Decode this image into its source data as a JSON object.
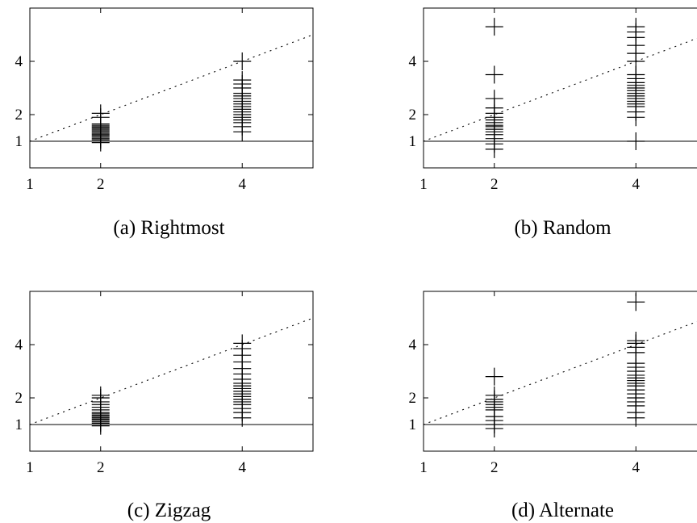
{
  "chart_data": [
    {
      "type": "scatter",
      "caption": "(a) Rightmost",
      "x_ticks": [
        1,
        2,
        4
      ],
      "y_ticks": [
        1,
        2,
        4
      ],
      "reference_lines": [
        "y = 1",
        "y = x"
      ],
      "series": [
        {
          "marker": "plus",
          "points": [
            [
              2,
              0.95
            ],
            [
              2,
              1.05
            ],
            [
              2,
              1.1
            ],
            [
              2,
              1.15
            ],
            [
              2,
              1.2
            ],
            [
              2,
              1.25
            ],
            [
              2,
              1.3
            ],
            [
              2,
              1.35
            ],
            [
              2,
              1.4
            ],
            [
              2,
              1.45
            ],
            [
              2,
              1.5
            ],
            [
              2,
              1.55
            ],
            [
              2,
              1.6
            ],
            [
              2,
              1.65
            ],
            [
              2,
              1.9
            ],
            [
              2,
              2.05
            ],
            [
              4,
              1.35
            ],
            [
              4,
              1.55
            ],
            [
              4,
              1.7
            ],
            [
              4,
              1.8
            ],
            [
              4,
              1.9
            ],
            [
              4,
              2.0
            ],
            [
              4,
              2.1
            ],
            [
              4,
              2.2
            ],
            [
              4,
              2.3
            ],
            [
              4,
              2.4
            ],
            [
              4,
              2.5
            ],
            [
              4,
              2.6
            ],
            [
              4,
              2.7
            ],
            [
              4,
              2.8
            ],
            [
              4,
              3.0
            ],
            [
              4,
              3.15
            ],
            [
              4,
              3.3
            ],
            [
              4,
              4.0
            ]
          ]
        }
      ]
    },
    {
      "type": "scatter",
      "caption": "(b) Random",
      "x_ticks": [
        1,
        2,
        4
      ],
      "y_ticks": [
        1,
        2,
        4
      ],
      "reference_lines": [
        "y = 1",
        "y = x"
      ],
      "series": [
        {
          "marker": "plus",
          "points": [
            [
              2,
              0.7
            ],
            [
              2,
              0.9
            ],
            [
              2,
              1.1
            ],
            [
              2,
              1.25
            ],
            [
              2,
              1.35
            ],
            [
              2,
              1.45
            ],
            [
              2,
              1.55
            ],
            [
              2,
              1.6
            ],
            [
              2,
              1.7
            ],
            [
              2,
              1.8
            ],
            [
              2,
              1.9
            ],
            [
              2,
              2.05
            ],
            [
              2,
              2.25
            ],
            [
              2,
              2.6
            ],
            [
              2,
              3.5
            ],
            [
              2,
              5.3
            ],
            [
              4,
              1.0
            ],
            [
              4,
              1.9
            ],
            [
              4,
              2.1
            ],
            [
              4,
              2.3
            ],
            [
              4,
              2.4
            ],
            [
              4,
              2.5
            ],
            [
              4,
              2.6
            ],
            [
              4,
              2.7
            ],
            [
              4,
              2.8
            ],
            [
              4,
              2.9
            ],
            [
              4,
              3.0
            ],
            [
              4,
              3.1
            ],
            [
              4,
              3.2
            ],
            [
              4,
              3.35
            ],
            [
              4,
              3.5
            ],
            [
              4,
              4.0
            ],
            [
              4,
              4.3
            ],
            [
              4,
              4.6
            ],
            [
              4,
              4.9
            ],
            [
              4,
              5.1
            ],
            [
              4,
              5.3
            ]
          ]
        }
      ]
    },
    {
      "type": "scatter",
      "caption": "(c) Zigzag",
      "x_ticks": [
        1,
        2,
        4
      ],
      "y_ticks": [
        1,
        2,
        4
      ],
      "reference_lines": [
        "y = 1",
        "y = x"
      ],
      "series": [
        {
          "marker": "plus",
          "points": [
            [
              2,
              0.95
            ],
            [
              2,
              1.05
            ],
            [
              2,
              1.1
            ],
            [
              2,
              1.15
            ],
            [
              2,
              1.2
            ],
            [
              2,
              1.25
            ],
            [
              2,
              1.3
            ],
            [
              2,
              1.35
            ],
            [
              2,
              1.4
            ],
            [
              2,
              1.45
            ],
            [
              2,
              1.55
            ],
            [
              2,
              1.65
            ],
            [
              2,
              1.75
            ],
            [
              2,
              1.85
            ],
            [
              2,
              2.0
            ],
            [
              2,
              2.1
            ],
            [
              4,
              1.25
            ],
            [
              4,
              1.45
            ],
            [
              4,
              1.6
            ],
            [
              4,
              1.75
            ],
            [
              4,
              1.85
            ],
            [
              4,
              1.95
            ],
            [
              4,
              2.05
            ],
            [
              4,
              2.15
            ],
            [
              4,
              2.25
            ],
            [
              4,
              2.35
            ],
            [
              4,
              2.45
            ],
            [
              4,
              2.55
            ],
            [
              4,
              2.7
            ],
            [
              4,
              2.9
            ],
            [
              4,
              3.1
            ],
            [
              4,
              3.35
            ],
            [
              4,
              3.6
            ],
            [
              4,
              3.85
            ],
            [
              4,
              4.05
            ]
          ]
        }
      ]
    },
    {
      "type": "scatter",
      "caption": "(d) Alternate",
      "x_ticks": [
        1,
        2,
        4
      ],
      "y_ticks": [
        1,
        2,
        4
      ],
      "reference_lines": [
        "y = 1",
        "y = x"
      ],
      "series": [
        {
          "marker": "plus",
          "points": [
            [
              2,
              0.85
            ],
            [
              2,
              1.0
            ],
            [
              2,
              1.15
            ],
            [
              2,
              1.3
            ],
            [
              2,
              1.55
            ],
            [
              2,
              1.65
            ],
            [
              2,
              1.75
            ],
            [
              2,
              1.85
            ],
            [
              2,
              1.95
            ],
            [
              2,
              2.1
            ],
            [
              2,
              2.8
            ],
            [
              4,
              1.25
            ],
            [
              4,
              1.45
            ],
            [
              4,
              1.7
            ],
            [
              4,
              1.85
            ],
            [
              4,
              2.0
            ],
            [
              4,
              2.15
            ],
            [
              4,
              2.3
            ],
            [
              4,
              2.45
            ],
            [
              4,
              2.55
            ],
            [
              4,
              2.65
            ],
            [
              4,
              2.75
            ],
            [
              4,
              2.85
            ],
            [
              4,
              3.0
            ],
            [
              4,
              3.15
            ],
            [
              4,
              3.3
            ],
            [
              4,
              3.7
            ],
            [
              4,
              3.9
            ],
            [
              4,
              4.05
            ],
            [
              4,
              4.15
            ],
            [
              4,
              5.6
            ]
          ]
        }
      ]
    }
  ]
}
